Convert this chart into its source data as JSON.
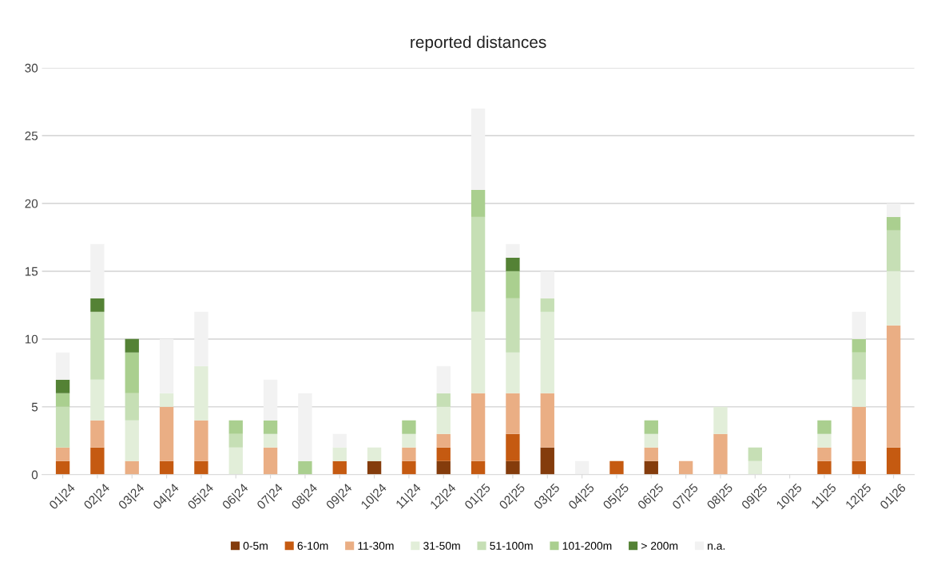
{
  "chart_data": {
    "type": "bar",
    "title": "reported distances",
    "stacked": true,
    "categories": [
      "01|24",
      "02|24",
      "03|24",
      "04|24",
      "05|24",
      "06|24",
      "07|24",
      "08|24",
      "09|24",
      "10|24",
      "11|24",
      "12|24",
      "01|25",
      "02|25",
      "03|25",
      "04|25",
      "05|25",
      "06|25",
      "07|25",
      "08|25",
      "09|25",
      "10|25",
      "11|25",
      "12|25",
      "01|26"
    ],
    "series": [
      {
        "name": "0-5m",
        "color": "#843c0c",
        "values": [
          0,
          0,
          0,
          0,
          0,
          0,
          0,
          0,
          0,
          1,
          0,
          1,
          0,
          1,
          2,
          0,
          0,
          1,
          0,
          0,
          0,
          0,
          0,
          0,
          0
        ]
      },
      {
        "name": "6-10m",
        "color": "#c55a11",
        "values": [
          1,
          2,
          0,
          1,
          1,
          0,
          0,
          0,
          1,
          0,
          1,
          1,
          1,
          2,
          0,
          0,
          1,
          0,
          0,
          0,
          0,
          0,
          1,
          1,
          2
        ]
      },
      {
        "name": "11-30m",
        "color": "#eaae84",
        "values": [
          1,
          2,
          1,
          4,
          3,
          0,
          2,
          0,
          0,
          0,
          1,
          1,
          5,
          3,
          4,
          0,
          0,
          1,
          1,
          3,
          0,
          0,
          1,
          4,
          9
        ]
      },
      {
        "name": "31-50m",
        "color": "#e2eed9",
        "values": [
          0,
          3,
          3,
          1,
          4,
          2,
          1,
          0,
          1,
          1,
          1,
          2,
          6,
          3,
          6,
          0,
          0,
          1,
          0,
          2,
          1,
          0,
          1,
          2,
          4
        ]
      },
      {
        "name": "51-100m",
        "color": "#c6dfb5",
        "values": [
          3,
          5,
          2,
          0,
          0,
          1,
          0,
          0,
          0,
          0,
          0,
          1,
          7,
          4,
          1,
          0,
          0,
          0,
          0,
          0,
          1,
          0,
          0,
          2,
          3
        ]
      },
      {
        "name": "101-200m",
        "color": "#aacf8f",
        "values": [
          1,
          0,
          3,
          0,
          0,
          1,
          1,
          1,
          0,
          0,
          1,
          0,
          2,
          2,
          0,
          0,
          0,
          1,
          0,
          0,
          0,
          0,
          1,
          1,
          1
        ]
      },
      {
        "name": "> 200m",
        "color": "#548235",
        "values": [
          1,
          1,
          1,
          0,
          0,
          0,
          0,
          0,
          0,
          0,
          0,
          0,
          0,
          1,
          0,
          0,
          0,
          0,
          0,
          0,
          0,
          0,
          0,
          0,
          0
        ]
      },
      {
        "name": "n.a.",
        "color": "#f2f2f2",
        "values": [
          2,
          4,
          0,
          4,
          4,
          0,
          3,
          5,
          1,
          0,
          0,
          2,
          6,
          1,
          2,
          1,
          0,
          0,
          0,
          0,
          0,
          0,
          0,
          2,
          1
        ]
      }
    ],
    "ylim": [
      0,
      30
    ],
    "yticks": [
      0,
      5,
      10,
      15,
      20,
      25,
      30
    ],
    "grid": "y",
    "legend": "bottom"
  }
}
